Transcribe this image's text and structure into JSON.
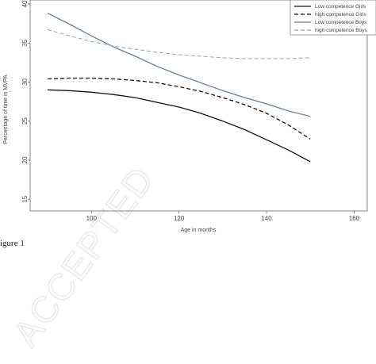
{
  "caption": "igure 1",
  "watermark": "ACCEPTED",
  "chart_data": {
    "type": "line",
    "title": "",
    "xlabel": "Age in months",
    "ylabel": "Percentage of time in MVPA",
    "xlim": [
      86,
      163
    ],
    "ylim": [
      13.5,
      40.5
    ],
    "xticks": [
      100,
      120,
      140,
      160
    ],
    "yticks": [
      15,
      20,
      25,
      30,
      35,
      40
    ],
    "grid": false,
    "legend_position": "top-right",
    "series": [
      {
        "name": "Low competence Girls",
        "color": "#111111",
        "dash": "solid",
        "x": [
          90,
          95,
          100,
          105,
          110,
          115,
          120,
          125,
          130,
          135,
          140,
          145,
          150
        ],
        "y": [
          29.0,
          28.9,
          28.7,
          28.4,
          28.0,
          27.4,
          26.8,
          26.0,
          25.0,
          23.9,
          22.6,
          21.3,
          19.8
        ]
      },
      {
        "name": "high competence Girls",
        "color": "#111111",
        "dash": "dashed",
        "x": [
          90,
          95,
          100,
          105,
          110,
          115,
          120,
          125,
          130,
          135,
          140,
          145,
          150
        ],
        "y": [
          30.4,
          30.5,
          30.5,
          30.4,
          30.2,
          29.9,
          29.4,
          28.8,
          28.0,
          27.1,
          26.0,
          24.5,
          22.7
        ]
      },
      {
        "name": "Low competence Boys",
        "color": "#6a7f99",
        "dash": "solid",
        "x": [
          90,
          95,
          100,
          105,
          110,
          115,
          120,
          125,
          130,
          135,
          140,
          145,
          150
        ],
        "y": [
          38.8,
          37.4,
          35.9,
          34.5,
          33.3,
          32.0,
          30.9,
          29.9,
          28.9,
          28.0,
          27.2,
          26.3,
          25.6
        ]
      },
      {
        "name": "high competence Boys",
        "color": "#8fa2b8",
        "dash": "dashed",
        "x": [
          90,
          95,
          100,
          105,
          110,
          115,
          120,
          125,
          130,
          135,
          140,
          145,
          150
        ],
        "y": [
          36.7,
          35.9,
          35.2,
          34.6,
          34.2,
          33.8,
          33.5,
          33.3,
          33.1,
          33.0,
          33.0,
          33.0,
          33.1
        ]
      }
    ]
  }
}
